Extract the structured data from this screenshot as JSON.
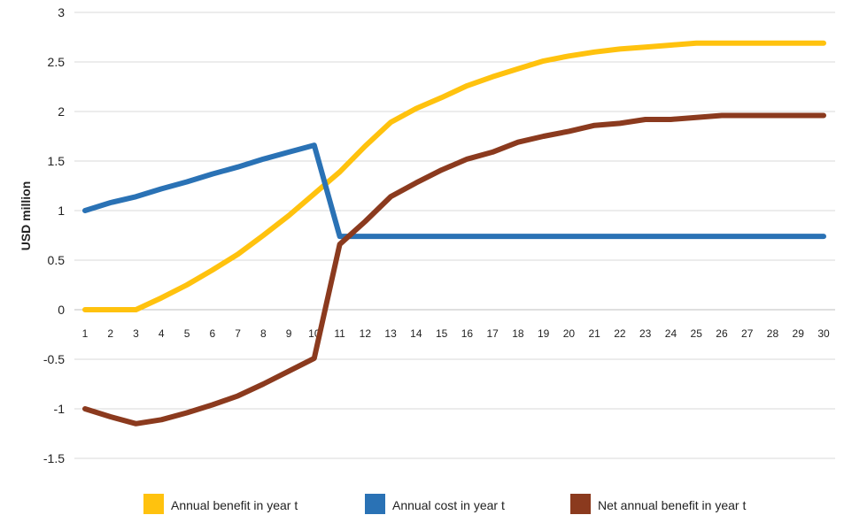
{
  "chart_data": {
    "type": "line",
    "x": [
      1,
      2,
      3,
      4,
      5,
      6,
      7,
      8,
      9,
      10,
      11,
      12,
      13,
      14,
      15,
      16,
      17,
      18,
      19,
      20,
      21,
      22,
      23,
      24,
      25,
      26,
      27,
      28,
      29,
      30
    ],
    "ylabel": "USD million",
    "ylim": [
      -1.5,
      3
    ],
    "yticks": [
      3,
      2.5,
      2,
      1.5,
      1,
      0.5,
      0,
      -0.5,
      -1,
      -1.5
    ],
    "grid": true,
    "legend_position": "bottom",
    "series": [
      {
        "name": "Annual benefit in year t",
        "color": "#FFC20E",
        "values": [
          0,
          0,
          0,
          0.12,
          0.25,
          0.4,
          0.56,
          0.75,
          0.95,
          1.17,
          1.39,
          1.65,
          1.89,
          2.03,
          2.14,
          2.26,
          2.35,
          2.43,
          2.51,
          2.56,
          2.6,
          2.63,
          2.65,
          2.67,
          2.69,
          2.69,
          2.69,
          2.69,
          2.69,
          2.69
        ]
      },
      {
        "name": "Annual cost in year t",
        "color": "#2A72B5",
        "values": [
          1.0,
          1.08,
          1.14,
          1.22,
          1.29,
          1.37,
          1.44,
          1.52,
          1.59,
          1.66,
          0.74,
          0.74,
          0.74,
          0.74,
          0.74,
          0.74,
          0.74,
          0.74,
          0.74,
          0.74,
          0.74,
          0.74,
          0.74,
          0.74,
          0.74,
          0.74,
          0.74,
          0.74,
          0.74,
          0.74
        ]
      },
      {
        "name": "Net annual benefit in year t",
        "color": "#8B3A1E",
        "values": [
          -1.0,
          -1.08,
          -1.15,
          -1.11,
          -1.04,
          -0.96,
          -0.87,
          -0.75,
          -0.62,
          -0.49,
          0.66,
          0.89,
          1.14,
          1.28,
          1.41,
          1.52,
          1.59,
          1.69,
          1.75,
          1.8,
          1.86,
          1.88,
          1.92,
          1.92,
          1.94,
          1.96,
          1.96,
          1.96,
          1.96,
          1.96
        ]
      }
    ]
  }
}
